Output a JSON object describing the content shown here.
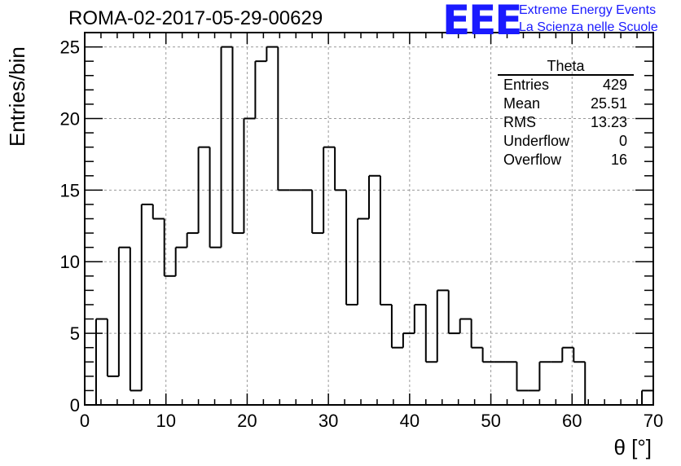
{
  "header": {
    "run_title": "ROMA-02-2017-05-29-00629",
    "logo_mark": "EEE",
    "logo_line1": "Extreme Energy Events",
    "logo_line2": "La Scienza nelle Scuole"
  },
  "stats_box": {
    "title": "Theta",
    "rows": [
      {
        "label": "Entries",
        "value": "429"
      },
      {
        "label": "Mean",
        "value": "25.51"
      },
      {
        "label": "RMS",
        "value": "13.23"
      },
      {
        "label": "Underflow",
        "value": "0"
      },
      {
        "label": "Overflow",
        "value": "16"
      }
    ]
  },
  "chart_data": {
    "type": "bar",
    "histogram": true,
    "xlabel": "θ [°]",
    "ylabel": "Entries/bin",
    "xlim": [
      0,
      70
    ],
    "ylim": [
      0,
      26
    ],
    "x_ticks": [
      0,
      10,
      20,
      30,
      40,
      50,
      60,
      70
    ],
    "y_ticks": [
      0,
      5,
      10,
      15,
      20,
      25
    ],
    "grid": true,
    "bin_width": 1.4,
    "bin_edges_start": 0,
    "values": [
      0,
      6,
      2,
      11,
      1,
      14,
      13,
      9,
      11,
      12,
      18,
      11,
      25,
      12,
      20,
      24,
      25,
      15,
      15,
      15,
      12,
      18,
      15,
      7,
      13,
      16,
      7,
      4,
      5,
      7,
      3,
      8,
      5,
      6,
      4,
      3,
      3,
      3,
      1,
      1,
      3,
      3,
      4,
      3,
      0,
      0,
      0,
      0,
      0,
      1
    ],
    "line_color": "#000000"
  }
}
